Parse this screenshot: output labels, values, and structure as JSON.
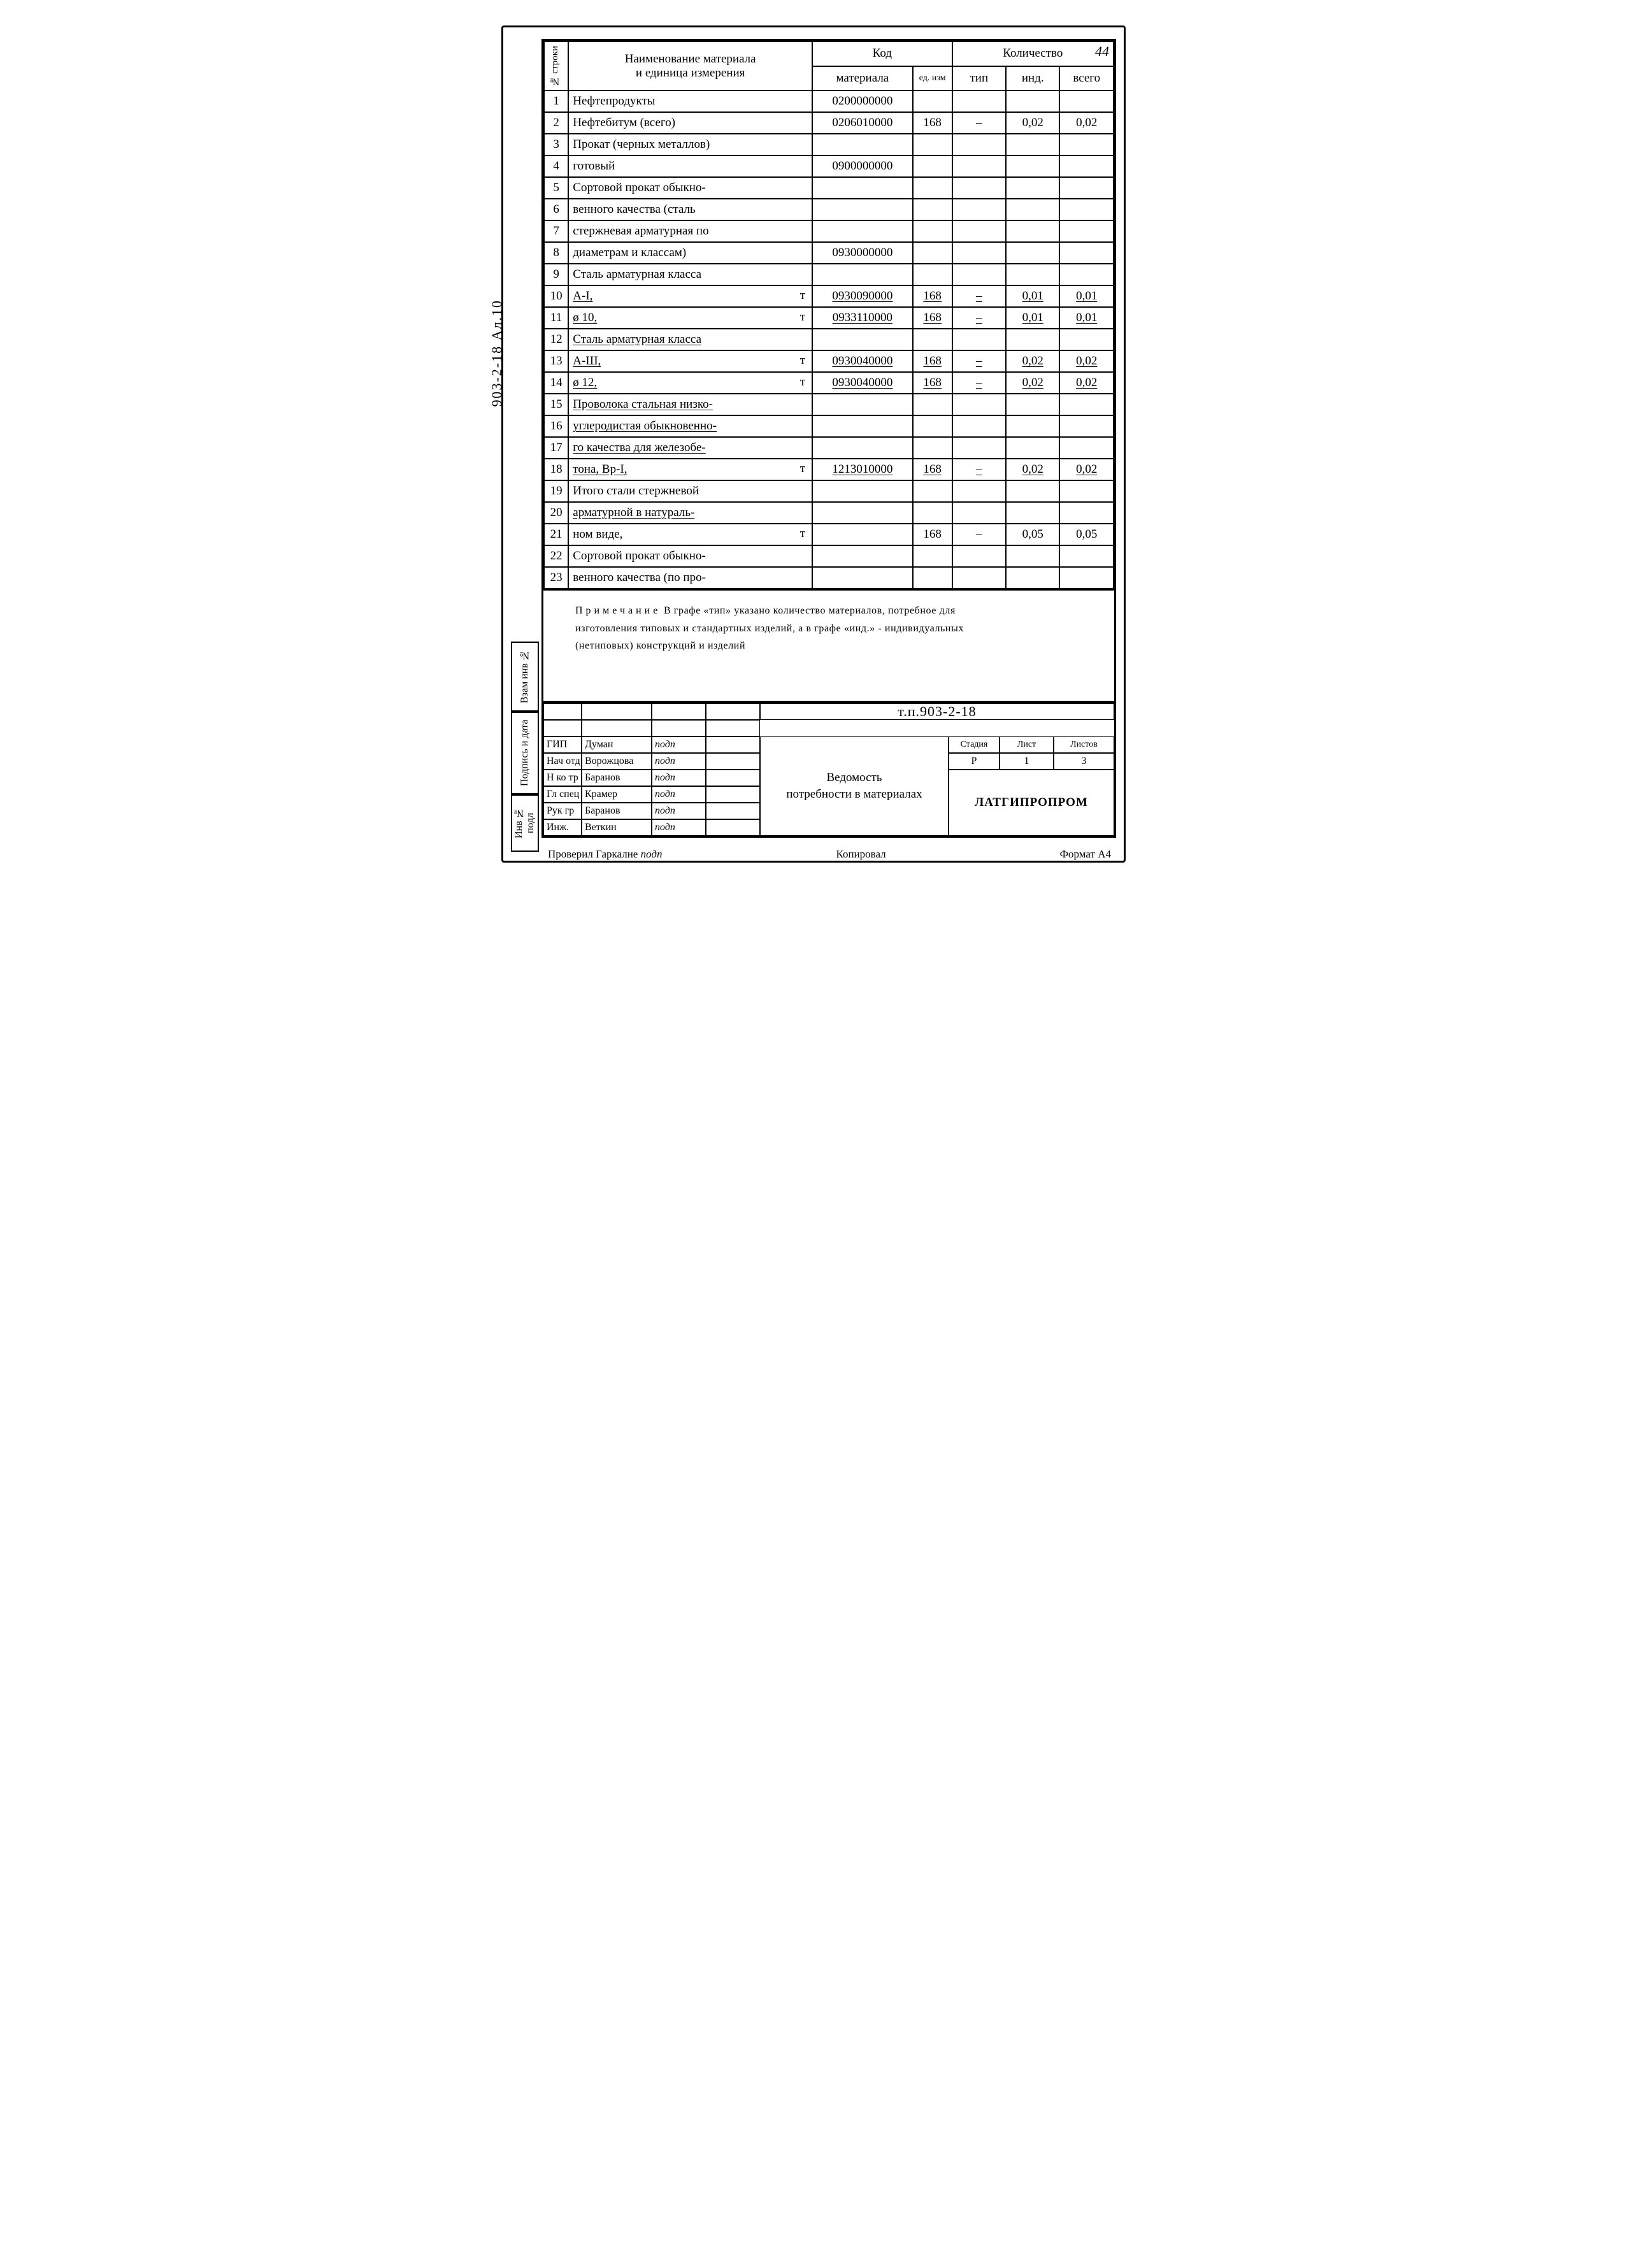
{
  "page_number": "44",
  "outside_label": "903-2-18   Ал.10",
  "side_tabs": [
    "Инв № подл",
    "Подпись и дата",
    "Взам инв №"
  ],
  "header": {
    "rownum_label": "№ строки",
    "name_label_line1": "Наименование материала",
    "name_label_line2": "и единица измерения",
    "code_group": "Код",
    "code_material": "материала",
    "code_unit": "ед. изм",
    "qty_group": "Количество",
    "qty_tip": "тип",
    "qty_ind": "инд.",
    "qty_total": "всего"
  },
  "rows": [
    {
      "n": "1",
      "name": "Нефтепродукты",
      "code": "0200000000",
      "un": "",
      "tip": "",
      "ind": "",
      "tot": ""
    },
    {
      "n": "2",
      "name": "Нефтебитум (всего)",
      "code": "0206010000",
      "un": "168",
      "tip": "–",
      "ind": "0,02",
      "tot": "0,02"
    },
    {
      "n": "3",
      "name": "Прокат (черных металлов)",
      "code": "",
      "un": "",
      "tip": "",
      "ind": "",
      "tot": ""
    },
    {
      "n": "4",
      "name": "готовый",
      "code": "0900000000",
      "un": "",
      "tip": "",
      "ind": "",
      "tot": ""
    },
    {
      "n": "5",
      "name": "Сортовой прокат обыкно-",
      "code": "",
      "un": "",
      "tip": "",
      "ind": "",
      "tot": ""
    },
    {
      "n": "6",
      "name": "венного качества (сталь",
      "code": "",
      "un": "",
      "tip": "",
      "ind": "",
      "tot": ""
    },
    {
      "n": "7",
      "name": "стержневая арматурная по",
      "code": "",
      "un": "",
      "tip": "",
      "ind": "",
      "tot": ""
    },
    {
      "n": "8",
      "name": "диаметрам и классам)",
      "code": "0930000000",
      "un": "",
      "tip": "",
      "ind": "",
      "tot": ""
    },
    {
      "n": "9",
      "name": "Сталь арматурная класса",
      "code": "",
      "un": "",
      "tip": "",
      "ind": "",
      "tot": ""
    },
    {
      "n": "10",
      "name": "А-I,",
      "suffix": "т",
      "u": true,
      "code": "0930090000",
      "un": "168",
      "tip": "–",
      "ind": "0,01",
      "tot": "0,01"
    },
    {
      "n": "11",
      "name": "ø 10,",
      "suffix": "т",
      "u": true,
      "code": "0933110000",
      "un": "168",
      "tip": "–",
      "ind": "0,01",
      "tot": "0,01"
    },
    {
      "n": "12",
      "name": "Сталь арматурная класса",
      "u": true,
      "code": "",
      "un": "",
      "tip": "",
      "ind": "",
      "tot": ""
    },
    {
      "n": "13",
      "name": "А-Ш,",
      "suffix": "т",
      "u": true,
      "code": "0930040000",
      "un": "168",
      "tip": "–",
      "ind": "0,02",
      "tot": "0,02"
    },
    {
      "n": "14",
      "name": "ø 12,",
      "suffix": "т",
      "u": true,
      "code": "0930040000",
      "un": "168",
      "tip": "–",
      "ind": "0,02",
      "tot": "0,02"
    },
    {
      "n": "15",
      "name": "Проволока стальная низко-",
      "u": true,
      "code": "",
      "un": "",
      "tip": "",
      "ind": "",
      "tot": ""
    },
    {
      "n": "16",
      "name": "углеродистая обыкновенно-",
      "u": true,
      "code": "",
      "un": "",
      "tip": "",
      "ind": "",
      "tot": ""
    },
    {
      "n": "17",
      "name": "го качества для железобе-",
      "u": true,
      "code": "",
      "un": "",
      "tip": "",
      "ind": "",
      "tot": ""
    },
    {
      "n": "18",
      "name": "тона, Вр-I,",
      "suffix": "т",
      "u": true,
      "code": "1213010000",
      "un": "168",
      "tip": "–",
      "ind": "0,02",
      "tot": "0,02"
    },
    {
      "n": "19",
      "name": "Итого стали стержневой",
      "code": "",
      "un": "",
      "tip": "",
      "ind": "",
      "tot": ""
    },
    {
      "n": "20",
      "name": "арматурной в натураль-",
      "u": true,
      "code": "",
      "un": "",
      "tip": "",
      "ind": "",
      "tot": ""
    },
    {
      "n": "21",
      "name": "ном виде,",
      "suffix": "т",
      "code": "",
      "un": "168",
      "tip": "–",
      "ind": "0,05",
      "tot": "0,05"
    },
    {
      "n": "22",
      "name": "Сортовой прокат обыкно-",
      "code": "",
      "un": "",
      "tip": "",
      "ind": "",
      "tot": ""
    },
    {
      "n": "23",
      "name": "венного качества (по про-",
      "code": "",
      "un": "",
      "tip": "",
      "ind": "",
      "tot": ""
    }
  ],
  "note": {
    "prefix": "Примечание",
    "body_l1": "В графе «тип» указано количество материалов, потребное для",
    "body_l2": "изготовления типовых и стандартных изделий, а в графе «инд.» - индивидуальных",
    "body_l3": "(нетиповых) конструкций и изделий"
  },
  "titleblock": {
    "project_code": "т.п.903-2-18",
    "doc_title_l1": "Ведомость",
    "doc_title_l2": "потребности в материалах",
    "stage_h": "Стадия",
    "sheet_h": "Лист",
    "sheets_h": "Листов",
    "stage_v": "Р",
    "sheet_v": "1",
    "sheets_v": "3",
    "org": "ЛАТГИПРОПРОМ",
    "roles": [
      {
        "role": "",
        "name": "",
        "sig": "",
        "date": ""
      },
      {
        "role": "ГИП",
        "name": "Думан",
        "sig": "подп",
        "date": ""
      },
      {
        "role": "Нач отд",
        "name": "Ворожцова",
        "sig": "подп",
        "date": ""
      },
      {
        "role": "Н ко тр",
        "name": "Баранов",
        "sig": "подп",
        "date": ""
      },
      {
        "role": "Гл спец",
        "name": "Крамер",
        "sig": "подп",
        "date": ""
      },
      {
        "role": "Рук гр",
        "name": "Баранов",
        "sig": "подп",
        "date": ""
      },
      {
        "role": "Инж.",
        "name": "Веткин",
        "sig": "подп",
        "date": ""
      }
    ]
  },
  "footer": {
    "left": "Проверил Гаркалне",
    "mid": "Копировал",
    "right": "Формат А4"
  }
}
